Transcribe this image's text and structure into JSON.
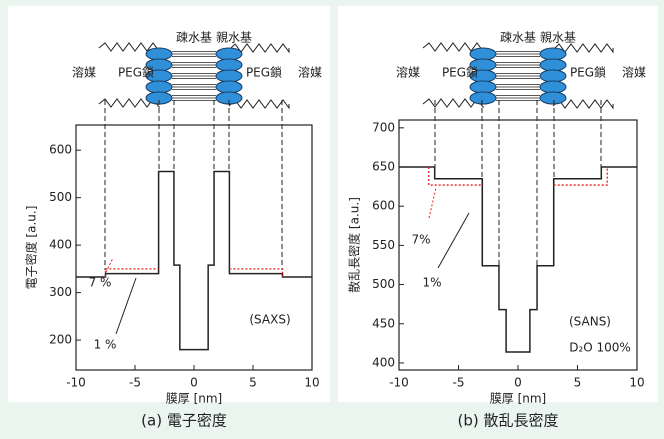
{
  "chart_data": [
    {
      "type": "line",
      "caption": "(a) 電子密度",
      "xlabel": "膜厚 [nm]",
      "ylabel": "電子密度 [a.u.]",
      "xlim": [
        -10,
        10
      ],
      "xticks": [
        -10,
        -5,
        0,
        5,
        10
      ],
      "ylim": [
        137,
        653
      ],
      "yticks": [
        200,
        300,
        400,
        500,
        600
      ],
      "labels": [
        "溶媒",
        "PEG鎖",
        "疎水基",
        "親水基",
        "PEG鎖",
        "溶媒"
      ],
      "annotations": [
        "7 %",
        "1 %",
        "(SAXS)"
      ],
      "annotation_colors": [
        "#e0201b",
        "#222222",
        "#222222"
      ],
      "series": [
        {
          "color": "#222222",
          "dash": false,
          "x": [
            -10,
            -7.5,
            -7.5,
            -3,
            -3,
            -1.7,
            -1.7,
            -1.2,
            -1.2,
            1.2,
            1.2,
            1.7,
            1.7,
            3,
            3,
            7.5,
            7.5,
            10
          ],
          "values": [
            333,
            333,
            340,
            340,
            555,
            555,
            358,
            358,
            180,
            180,
            358,
            358,
            555,
            555,
            340,
            340,
            333,
            333
          ]
        },
        {
          "color": "#e0201b",
          "dash": true,
          "x": [
            -7.5,
            -7.5,
            -3,
            0,
            3,
            7.5,
            7.5
          ],
          "values": [
            333,
            350,
            350,
            null,
            350,
            350,
            333
          ]
        }
      ]
    },
    {
      "type": "line",
      "caption": "(b) 散乱長密度",
      "xlabel": "膜厚 [nm]",
      "ylabel": "散乱長密度 [a.u.]",
      "xlim": [
        -10,
        10
      ],
      "xticks": [
        -10,
        -5,
        0,
        5,
        10
      ],
      "ylim": [
        391,
        710
      ],
      "yticks": [
        400,
        450,
        500,
        550,
        600,
        650,
        700
      ],
      "labels": [
        "溶媒",
        "PEG鎖",
        "疎水基",
        "親水基",
        "PEG鎖",
        "溶媒"
      ],
      "annotations": [
        "7%",
        "1%",
        "(SANS)",
        "D₂O 100%"
      ],
      "annotation_colors": [
        "#e0201b",
        "#222222",
        "#222222",
        "#222222"
      ],
      "series": [
        {
          "color": "#222222",
          "dash": false,
          "x": [
            -10,
            -7,
            -7,
            -3,
            -3,
            -1.6,
            -1.6,
            -1,
            -1,
            1,
            1,
            1.6,
            1.6,
            3,
            3,
            7,
            7,
            10
          ],
          "values": [
            650,
            650,
            635,
            635,
            524,
            524,
            468,
            468,
            414,
            414,
            468,
            468,
            524,
            524,
            635,
            635,
            650,
            650
          ]
        },
        {
          "color": "#e0201b",
          "dash": true,
          "x": [
            -7.5,
            -7.5,
            -3,
            0,
            3,
            7.5,
            7.5
          ],
          "values": [
            650,
            627,
            627,
            null,
            627,
            627,
            650
          ]
        }
      ]
    }
  ]
}
